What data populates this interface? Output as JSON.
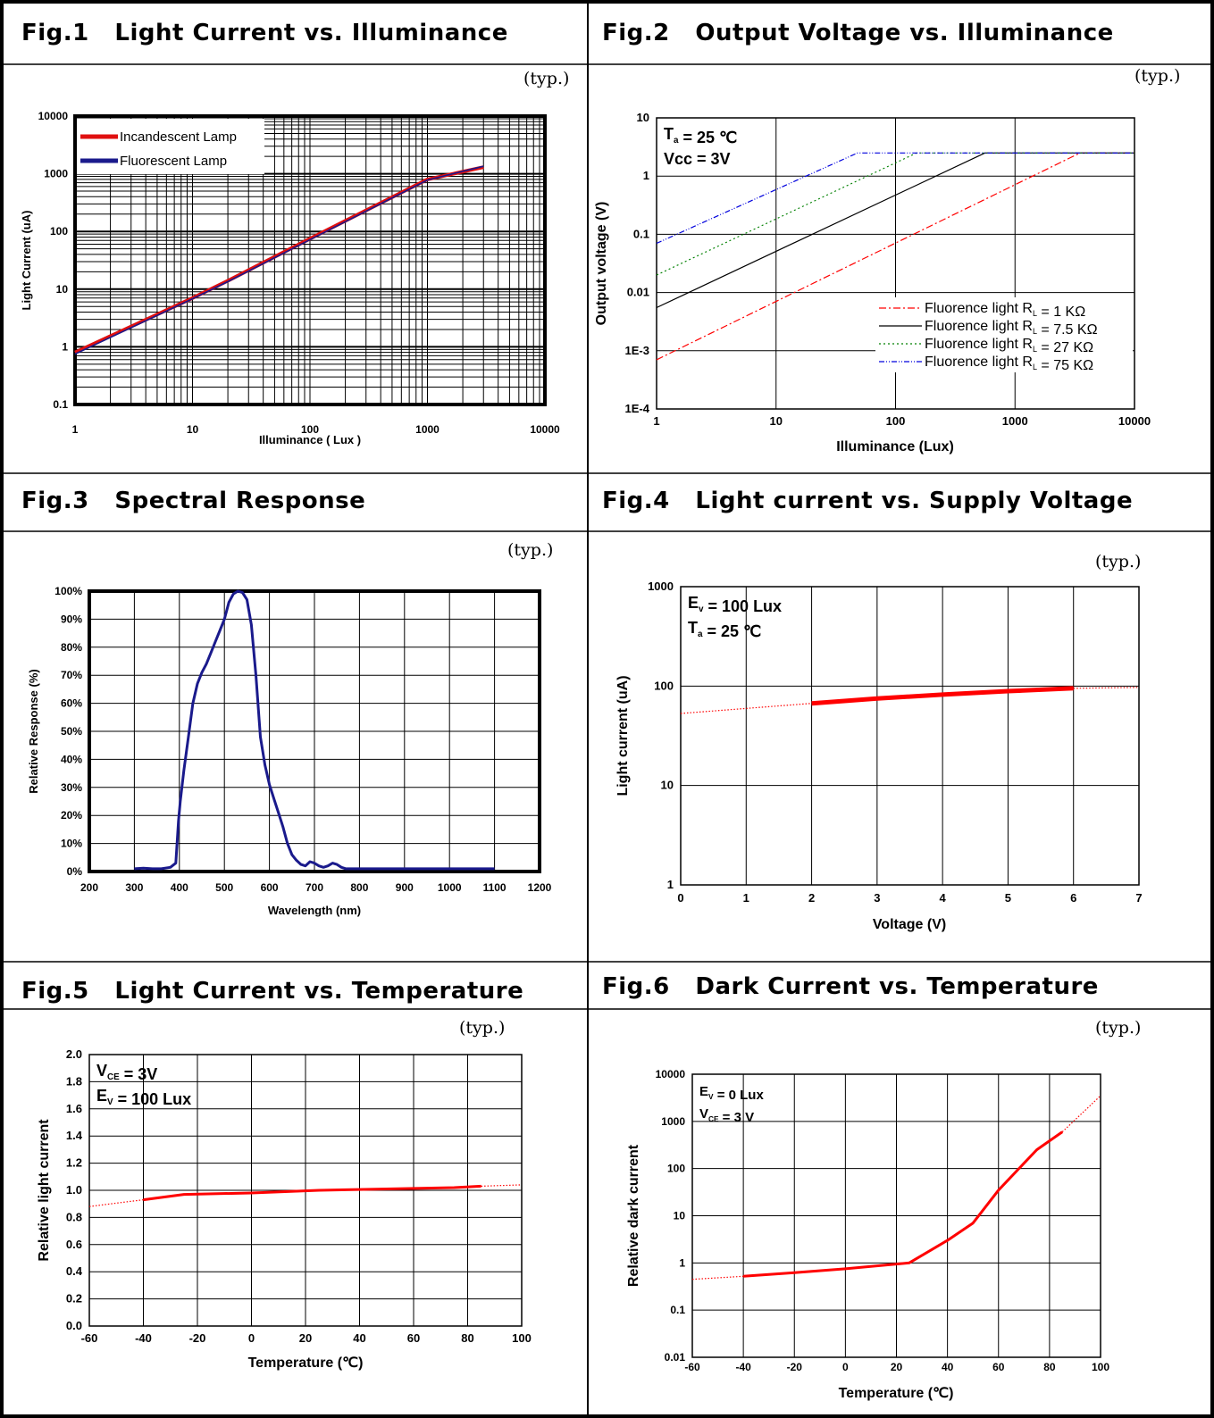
{
  "page": {
    "headers": [
      "Fig.1   Light Current vs. Illuminance",
      "Fig.2   Output Voltage vs. Illuminance",
      "Fig.3   Spectral Response",
      "Fig.4   Light current vs. Supply Voltage",
      "Fig.5   Light Current vs. Temperature",
      "Fig.6   Dark Current vs. Temperature"
    ],
    "typ_label": "(typ.)"
  },
  "chart_data": [
    {
      "type": "line",
      "title": "Fig.1   Light Current vs. Illuminance",
      "xlabel": "Illuminance ( Lux )",
      "ylabel": "Light Current (uA)",
      "xscale": "log",
      "yscale": "log",
      "xlim": [
        1,
        10000
      ],
      "ylim": [
        0.1,
        10000
      ],
      "x_ticks": [
        "1",
        "10",
        "100",
        "1000",
        "10000"
      ],
      "y_ticks": [
        "0.1",
        "1",
        "10",
        "100",
        "1000",
        "10000"
      ],
      "grid": true,
      "legend": "top-left",
      "series": [
        {
          "name": "Incandescent Lamp",
          "color": "#e01010",
          "x": [
            1,
            10,
            20,
            100,
            1000,
            3000
          ],
          "y": [
            0.8,
            7,
            14,
            75,
            800,
            1300
          ]
        },
        {
          "name": "Fluorescent Lamp",
          "color": "#1a1a8c",
          "x": [
            1,
            10,
            20,
            100,
            1000,
            3000
          ],
          "y": [
            0.75,
            6.8,
            13.5,
            72,
            780,
            1350
          ]
        }
      ]
    },
    {
      "type": "line",
      "title": "Fig.2   Output Voltage vs. Illuminance",
      "xlabel": "Illuminance (Lux)",
      "ylabel": "Output voltage (V)",
      "xscale": "log",
      "yscale": "log",
      "xlim": [
        1,
        10000
      ],
      "ylim": [
        0.0001,
        10
      ],
      "x_ticks": [
        "1",
        "10",
        "100",
        "1000",
        "10000"
      ],
      "y_ticks": [
        "1E-4",
        "1E-3",
        "0.01",
        "0.1",
        "1",
        "10"
      ],
      "grid": true,
      "annotations": [
        "T<sub>a</sub> = 25 ℃",
        "Vcc = 3V"
      ],
      "legend": "bottom-right",
      "series": [
        {
          "name": "Fluorence light R<sub>L</sub> = 1 KΩ",
          "color": "#ff0000",
          "dash": "8,3,2,3",
          "x": [
            1,
            3500,
            10000
          ],
          "y": [
            0.0007,
            2.5,
            2.5
          ]
        },
        {
          "name": "Fluorence light R<sub>L</sub> = 7.5 KΩ",
          "color": "#000000",
          "dash": "",
          "x": [
            1,
            560,
            10000
          ],
          "y": [
            0.0055,
            2.5,
            2.5
          ]
        },
        {
          "name": "Fluorence light R<sub>L</sub> = 27 KΩ",
          "color": "#008000",
          "dash": "2,3",
          "x": [
            1,
            150,
            10000
          ],
          "y": [
            0.02,
            2.5,
            2.5
          ]
        },
        {
          "name": "Fluorence light R<sub>L</sub> = 75 KΩ",
          "color": "#0000dd",
          "dash": "6,2,1,2,1,2",
          "x": [
            1,
            48,
            10000
          ],
          "y": [
            0.07,
            2.5,
            2.5
          ]
        }
      ]
    },
    {
      "type": "line",
      "title": "Fig.3   Spectral Response",
      "xlabel": "Wavelength (nm)",
      "ylabel": "Relative Response (%)",
      "xlim": [
        200,
        1200
      ],
      "ylim": [
        0,
        100
      ],
      "x_ticks": [
        "200",
        "300",
        "400",
        "500",
        "600",
        "700",
        "800",
        "900",
        "1000",
        "1100",
        "1200"
      ],
      "y_ticks": [
        "0%",
        "10%",
        "20%",
        "30%",
        "40%",
        "50%",
        "60%",
        "70%",
        "80%",
        "90%",
        "100%"
      ],
      "grid": true,
      "series": [
        {
          "color": "#1a1a8c",
          "x": [
            300,
            320,
            340,
            360,
            380,
            392,
            398,
            402,
            410,
            420,
            430,
            440,
            450,
            460,
            470,
            480,
            490,
            500,
            510,
            520,
            530,
            540,
            550,
            560,
            570,
            580,
            590,
            600,
            610,
            620,
            630,
            640,
            650,
            660,
            670,
            680,
            690,
            700,
            710,
            720,
            730,
            740,
            750,
            760,
            770,
            780,
            790,
            800,
            810,
            820,
            830,
            850,
            900,
            950,
            1000,
            1050,
            1100
          ],
          "y": [
            1,
            1.2,
            1,
            1,
            1.5,
            3,
            18,
            25,
            36,
            48,
            60,
            67,
            71,
            74,
            78,
            82,
            86,
            90,
            96,
            99,
            100,
            99.5,
            97,
            88,
            70,
            48,
            38,
            31,
            26,
            21,
            16,
            10,
            6,
            4,
            2.5,
            2,
            3.5,
            3,
            2,
            1.5,
            2,
            3,
            2.5,
            1.5,
            1,
            1,
            1,
            1,
            1,
            1,
            1,
            1,
            1,
            1,
            1,
            1,
            1
          ]
        }
      ]
    },
    {
      "type": "line",
      "title": "Fig.4   Light current vs. Supply Voltage",
      "xlabel": "Voltage (V)",
      "ylabel": "Light current (uA)",
      "yscale": "log",
      "xlim": [
        0,
        7
      ],
      "ylim": [
        1,
        1000
      ],
      "x_ticks": [
        "0",
        "1",
        "2",
        "3",
        "4",
        "5",
        "6",
        "7"
      ],
      "y_ticks": [
        "1",
        "10",
        "100",
        "1000"
      ],
      "grid": true,
      "annotations": [
        "E<sub>v</sub> = 100 Lux",
        "T<sub>a</sub> = 25 ℃"
      ],
      "series": [
        {
          "color": "#ff0000",
          "style": "dotted",
          "x": [
            0,
            2
          ],
          "y": [
            53,
            67
          ]
        },
        {
          "color": "#ff0000",
          "style": "solid",
          "x": [
            2,
            3,
            4,
            5,
            6
          ],
          "y": [
            67,
            75,
            82,
            89,
            95
          ]
        },
        {
          "color": "#ff0000",
          "style": "dotted",
          "x": [
            6,
            7
          ],
          "y": [
            95,
            97
          ]
        }
      ]
    },
    {
      "type": "line",
      "title": "Fig.5   Light Current vs. Temperature",
      "xlabel": "Temperature (℃)",
      "ylabel": "Relative light current",
      "xlim": [
        -60,
        100
      ],
      "ylim": [
        0,
        2.0
      ],
      "x_ticks": [
        "-60",
        "-40",
        "-20",
        "0",
        "20",
        "40",
        "60",
        "80",
        "100"
      ],
      "y_ticks": [
        "0.0",
        "0.2",
        "0.4",
        "0.6",
        "0.8",
        "1.0",
        "1.2",
        "1.4",
        "1.6",
        "1.8",
        "2.0"
      ],
      "grid": true,
      "annotations": [
        "V<sub>CE</sub> = 3V",
        "E<sub>V</sub> = 100 Lux"
      ],
      "series": [
        {
          "color": "#ff0000",
          "style": "dotted",
          "x": [
            -60,
            -40
          ],
          "y": [
            0.88,
            0.93
          ]
        },
        {
          "color": "#ff0000",
          "style": "solid",
          "x": [
            -40,
            -25,
            0,
            25,
            50,
            75,
            85
          ],
          "y": [
            0.93,
            0.97,
            0.98,
            1.0,
            1.01,
            1.02,
            1.03
          ]
        },
        {
          "color": "#ff0000",
          "style": "dotted",
          "x": [
            85,
            100
          ],
          "y": [
            1.03,
            1.04
          ]
        }
      ]
    },
    {
      "type": "line",
      "title": "Fig.6   Dark Current vs. Temperature",
      "xlabel": "Temperature (℃)",
      "ylabel": "Relative dark current",
      "yscale": "log",
      "xlim": [
        -60,
        100
      ],
      "ylim": [
        0.01,
        10000
      ],
      "x_ticks": [
        "-60",
        "-40",
        "-20",
        "0",
        "20",
        "40",
        "60",
        "80",
        "100"
      ],
      "y_ticks": [
        "0.01",
        "0.1",
        "1",
        "10",
        "100",
        "1000",
        "10000"
      ],
      "grid": true,
      "annotations": [
        "E<sub>V</sub> = 0 Lux",
        "V<sub>CE</sub> = 3 V"
      ],
      "series": [
        {
          "color": "#ff0000",
          "style": "dotted",
          "x": [
            -60,
            -40
          ],
          "y": [
            0.45,
            0.52
          ]
        },
        {
          "color": "#ff0000",
          "style": "solid",
          "x": [
            -40,
            -20,
            0,
            25,
            40,
            50,
            60,
            75,
            85
          ],
          "y": [
            0.52,
            0.62,
            0.75,
            1.0,
            3,
            7,
            35,
            250,
            600
          ]
        },
        {
          "color": "#ff0000",
          "style": "dotted",
          "x": [
            85,
            100
          ],
          "y": [
            600,
            3500
          ]
        }
      ]
    }
  ]
}
